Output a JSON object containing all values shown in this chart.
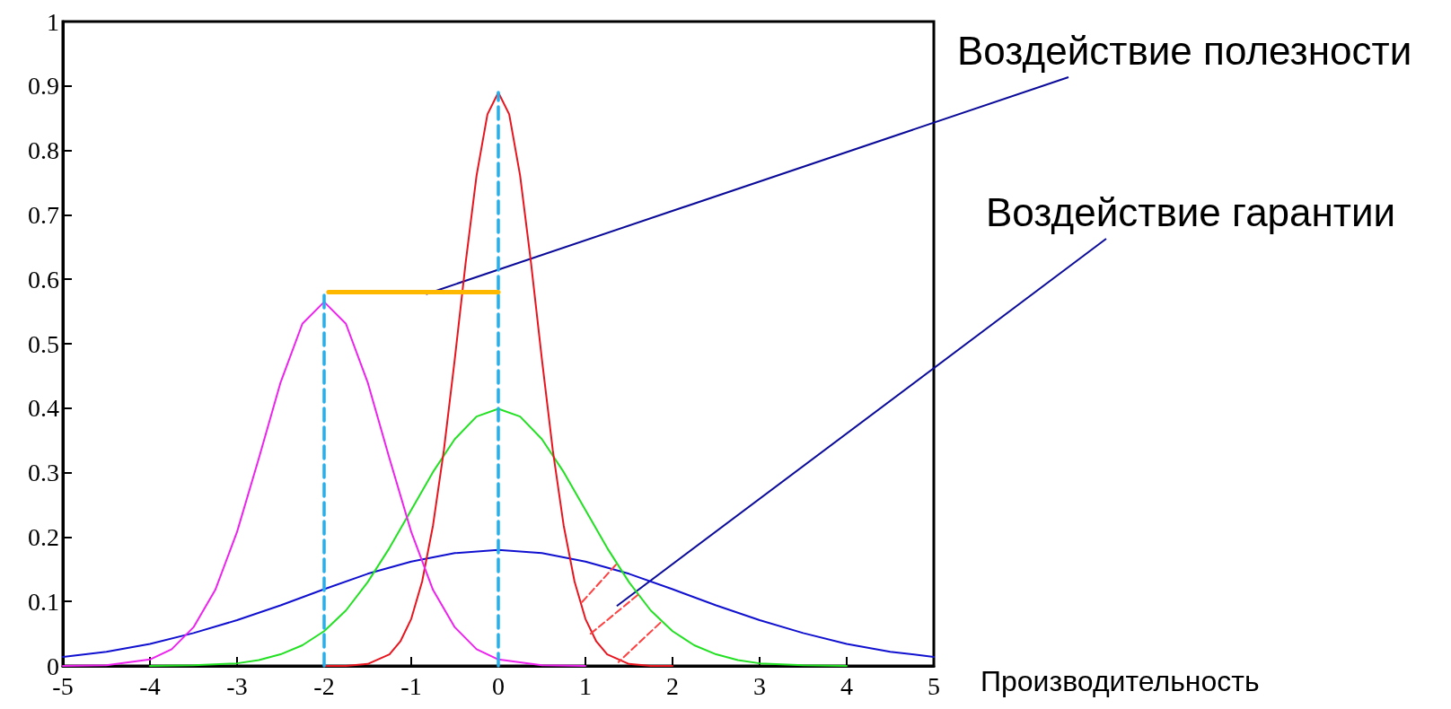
{
  "chart_data": {
    "type": "line",
    "xlabel": "Производительность",
    "xlim": [
      -5,
      5
    ],
    "xticks": [
      -5,
      -4,
      -3,
      -2,
      -1,
      0,
      1,
      2,
      3,
      4,
      5
    ],
    "ylim": [
      0,
      1
    ],
    "yticks": [
      0,
      0.1,
      0.2,
      0.3,
      0.4,
      0.5,
      0.6,
      0.7,
      0.8,
      0.9,
      1
    ],
    "grid": false,
    "marker": "none",
    "series": [
      {
        "color": "#1010d0",
        "x": [
          -5,
          -4.5,
          -4,
          -3.5,
          -3,
          -2.5,
          -2,
          -1.5,
          -1,
          -0.5,
          0,
          0.5,
          1,
          1.5,
          2,
          2.5,
          3,
          3.5,
          4,
          4.5,
          5
        ],
        "values": [
          0.014,
          0.022,
          0.034,
          0.051,
          0.071,
          0.094,
          0.119,
          0.143,
          0.162,
          0.175,
          0.18,
          0.175,
          0.162,
          0.143,
          0.119,
          0.094,
          0.071,
          0.051,
          0.034,
          0.022,
          0.014
        ]
      },
      {
        "color": "#22e022",
        "x": [
          -4,
          -3.5,
          -3,
          -2.75,
          -2.5,
          -2.25,
          -2,
          -1.75,
          -1.5,
          -1.25,
          -1,
          -0.75,
          -0.5,
          -0.25,
          0,
          0.25,
          0.5,
          0.75,
          1,
          1.25,
          1.5,
          1.75,
          2,
          2.25,
          2.5,
          2.75,
          3,
          3.5,
          4
        ],
        "values": [
          0,
          0.001,
          0.004,
          0.009,
          0.018,
          0.032,
          0.054,
          0.086,
          0.13,
          0.183,
          0.242,
          0.301,
          0.352,
          0.387,
          0.399,
          0.387,
          0.352,
          0.301,
          0.242,
          0.183,
          0.13,
          0.086,
          0.054,
          0.032,
          0.018,
          0.009,
          0.004,
          0.001,
          0
        ]
      },
      {
        "color": "#e8141e",
        "x": [
          -2,
          -1.75,
          -1.5,
          -1.25,
          -1.125,
          -1,
          -0.875,
          -0.75,
          -0.625,
          -0.5,
          -0.375,
          -0.25,
          -0.125,
          0,
          0.125,
          0.25,
          0.375,
          0.5,
          0.625,
          0.75,
          0.875,
          1,
          1.125,
          1.25,
          1.5,
          1.75,
          2
        ],
        "values": [
          0,
          0,
          0.003,
          0.018,
          0.038,
          0.073,
          0.131,
          0.218,
          0.335,
          0.476,
          0.626,
          0.761,
          0.856,
          0.89,
          0.856,
          0.761,
          0.626,
          0.476,
          0.335,
          0.218,
          0.131,
          0.073,
          0.038,
          0.018,
          0.003,
          0,
          0
        ]
      },
      {
        "color": "#ee22ee",
        "x": [
          -5,
          -4.5,
          -4,
          -3.75,
          -3.5,
          -3.25,
          -3,
          -2.75,
          -2.5,
          -2.25,
          -2,
          -1.75,
          -1.5,
          -1.25,
          -1,
          -0.75,
          -0.5,
          -0.25,
          0,
          0.5,
          1
        ],
        "values": [
          0,
          0.001,
          0.01,
          0.026,
          0.06,
          0.118,
          0.208,
          0.322,
          0.44,
          0.531,
          0.565,
          0.531,
          0.44,
          0.322,
          0.208,
          0.118,
          0.06,
          0.026,
          0.01,
          0.001,
          0
        ]
      },
      {
        "color": "#22b0ee",
        "line_style": "dashed",
        "x": [
          -2,
          -2
        ],
        "values": [
          0,
          0.58
        ]
      },
      {
        "color": "#22b0ee",
        "line_style": "dashed",
        "x": [
          0,
          0
        ],
        "values": [
          0,
          0.89
        ]
      },
      {
        "color": "#ffb800",
        "x": [
          -1.95,
          0
        ],
        "values": [
          0.58,
          0.58
        ]
      },
      {
        "color": "#ff4040",
        "line_style": "dashed",
        "x": [
          1.35,
          0.94
        ],
        "values": [
          0.157,
          0.096
        ]
      },
      {
        "color": "#ff4040",
        "line_style": "dashed",
        "x": [
          1.6,
          1.06
        ],
        "values": [
          0.11,
          0.05
        ]
      },
      {
        "color": "#ff4040",
        "line_style": "dashed",
        "x": [
          1.86,
          1.38
        ],
        "values": [
          0.067,
          0.006
        ]
      }
    ],
    "annotations": [
      {
        "text": "Воздействие полезности",
        "x": -0.83,
        "y": 0.577
      },
      {
        "text": "Воздействие гарантии",
        "x": 1.36,
        "y": 0.093
      }
    ]
  }
}
